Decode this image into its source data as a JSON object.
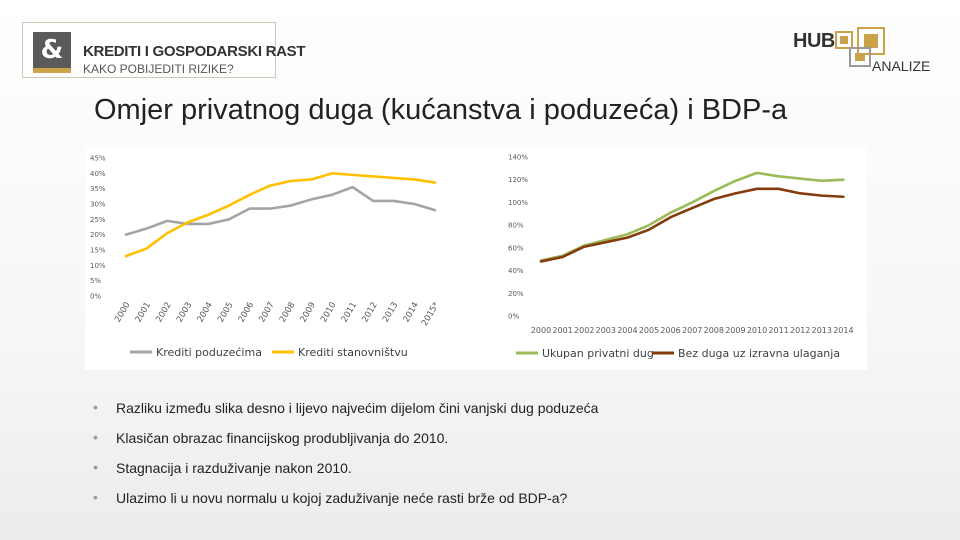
{
  "header": {
    "logo_mark": "&",
    "logo_title": "KREDITI I GOSPODARSKI RAST",
    "logo_subtitle": "KAKO POBIJEDITI RIZIKE?",
    "brand_hub": "HUB",
    "brand_analize": "ANALIZE"
  },
  "slide": {
    "title": "Omjer privatnog duga (kućanstva i poduzeća) i BDP-a"
  },
  "bullets": [
    "Razliku između slika desno i lijevo najvećim dijelom čini vanjski dug poduzeća",
    "Klasičan obrazac financijskog produbljivanja do 2010.",
    "Stagnacija i razduživanje nakon 2010.",
    "Ulazimo li u novu normalu u kojoj zaduživanje neće rasti brže od BDP-a?"
  ],
  "chart_data": [
    {
      "type": "line",
      "x": [
        "2000",
        "2001",
        "2002",
        "2003",
        "2004",
        "2005",
        "2006",
        "2007",
        "2008",
        "2009",
        "2010",
        "2011",
        "2012",
        "2013",
        "2014",
        "2015*"
      ],
      "ylim": [
        0,
        45
      ],
      "yticks": [
        "0%",
        "5%",
        "10%",
        "15%",
        "20%",
        "25%",
        "30%",
        "35%",
        "40%",
        "45%"
      ],
      "legend_position": "bottom",
      "grid": false,
      "series": [
        {
          "name": "Krediti poduzećima",
          "color": "#a5a5a5",
          "values": [
            20,
            22,
            24.5,
            23.5,
            23.5,
            25,
            28.5,
            28.5,
            29.5,
            31.5,
            33,
            35.5,
            31,
            31,
            30,
            28
          ]
        },
        {
          "name": "Krediti stanovništvu",
          "color": "#ffc000",
          "values": [
            13,
            15.5,
            20.5,
            24,
            26.5,
            29.5,
            33,
            36,
            37.5,
            38,
            40,
            39.5,
            39,
            38.5,
            38,
            37
          ]
        }
      ]
    },
    {
      "type": "line",
      "x": [
        "2000",
        "2001",
        "2002",
        "2003",
        "2004",
        "2005",
        "2006",
        "2007",
        "2008",
        "2009",
        "2010",
        "2011",
        "2012",
        "2013",
        "2014"
      ],
      "ylim": [
        0,
        140
      ],
      "yticks": [
        "0%",
        "20%",
        "40%",
        "60%",
        "80%",
        "100%",
        "120%",
        "140%"
      ],
      "legend_position": "bottom",
      "grid": false,
      "series": [
        {
          "name": "Ukupan privatni dug",
          "color": "#9bbb59",
          "values": [
            49,
            53,
            62,
            67,
            72,
            80,
            91,
            100,
            110,
            119,
            126,
            123,
            121,
            119,
            120
          ]
        },
        {
          "name": "Bez duga uz izravna ulaganja",
          "color": "#843c0c",
          "values": [
            48,
            52,
            61,
            65,
            69,
            76,
            87,
            95,
            103,
            108,
            112,
            112,
            108,
            106,
            105
          ]
        }
      ]
    }
  ]
}
